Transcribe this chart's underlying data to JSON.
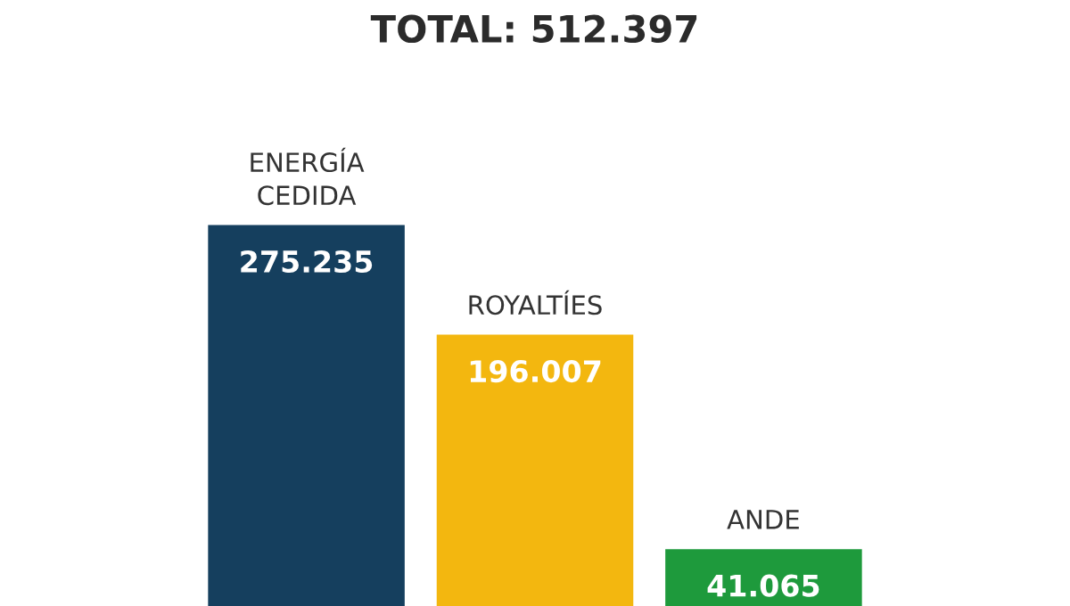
{
  "chart_data": {
    "type": "bar",
    "title": "TOTAL: 512.397",
    "categories": [
      "ENERGÍA\nCEDIDA",
      "ROYALTÍES",
      "ANDE"
    ],
    "values": [
      275.235,
      196.007,
      41.065
    ],
    "colors": [
      "#153f5e",
      "#f3b70f",
      "#1e9a3c"
    ],
    "data_labels": true
  }
}
